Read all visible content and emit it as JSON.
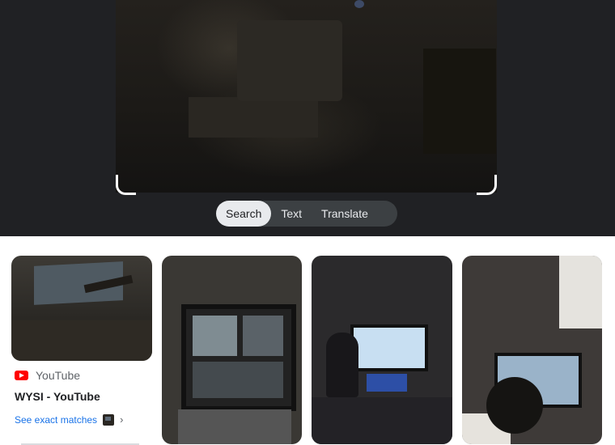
{
  "modes": {
    "search": "Search",
    "text": "Text",
    "translate": "Translate",
    "active": "search"
  },
  "results": [
    {
      "source": "YouTube",
      "source_icon": "youtube-icon",
      "title": "WYSI - YouTube",
      "exact_matches": "See exact matches"
    }
  ],
  "colors": {
    "viewer_bg": "#202124",
    "accent": "#1a73e8",
    "youtube_red": "#ff0000"
  }
}
